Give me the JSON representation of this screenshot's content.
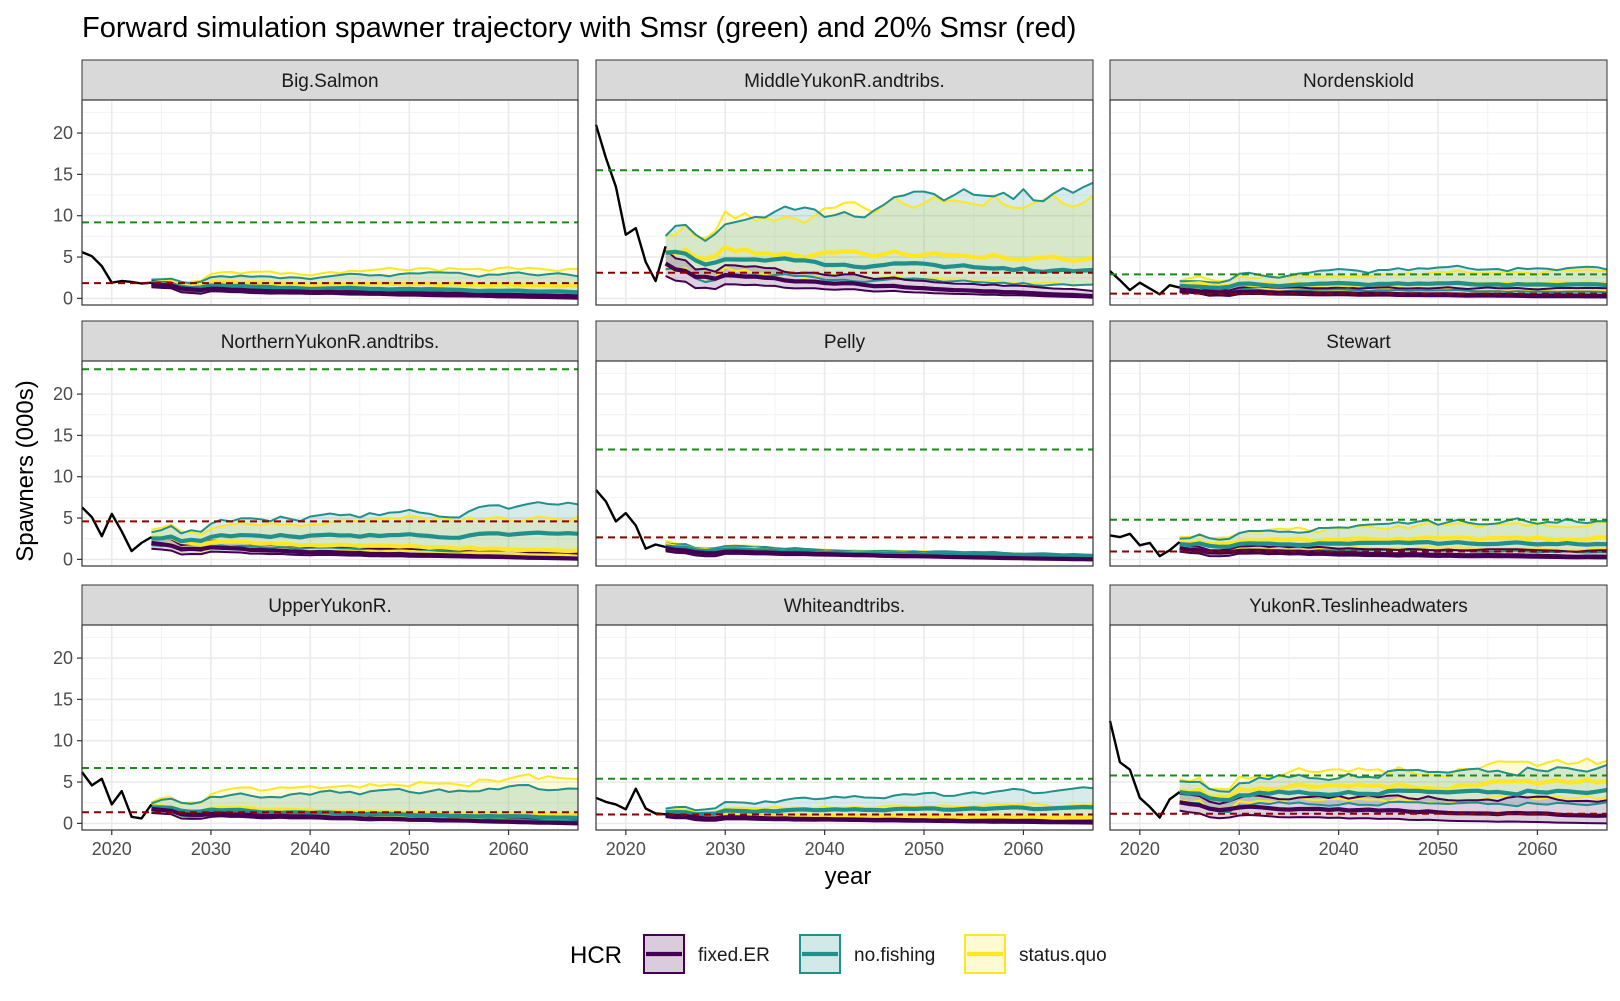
{
  "chart_data": {
    "type": "line",
    "title": "Forward simulation spawner trajectory with Smsr (green) and 20% Smsr (red)",
    "xlabel": "year",
    "ylabel": "Spawners (000s)",
    "xlim": [
      2017,
      2067
    ],
    "ylim": [
      -0.8,
      24
    ],
    "x_ticks": [
      2020,
      2030,
      2040,
      2050,
      2060
    ],
    "y_ticks": [
      0,
      5,
      10,
      15,
      20
    ],
    "grid": true,
    "facet_layout": "3x3",
    "legend": {
      "title": "HCR",
      "position": "bottom",
      "entries": [
        {
          "label": "fixed.ER",
          "color": "#440154"
        },
        {
          "label": "no.fishing",
          "color": "#21908C"
        },
        {
          "label": "status.quo",
          "color": "#FDE725"
        }
      ]
    },
    "reference_lines": {
      "smsr_color": "#1a8a1a",
      "smsr20_color": "#8b0000"
    },
    "facets": [
      {
        "name": "Big.Salmon",
        "smsr": 9.2,
        "smsr20": 1.84,
        "historical": {
          "x": [
            2017,
            2018,
            2019,
            2020,
            2021,
            2022,
            2023,
            2024
          ],
          "y": [
            5.6,
            5.1,
            3.9,
            1.9,
            2.1,
            2.0,
            1.8,
            1.9
          ]
        },
        "hcr": {
          "fixed.ER": {
            "median_start": 1.7,
            "median_end": 0.1,
            "lower_start": 1.3,
            "lower_end": 0.0,
            "upper_start": 2.0,
            "upper_end": 0.4
          },
          "no.fishing": {
            "median_start": 1.8,
            "median_end": 0.8,
            "lower_start": 1.5,
            "lower_end": 0.3,
            "upper_start": 2.2,
            "upper_end": 3.0
          },
          "status.quo": {
            "median_start": 1.9,
            "median_end": 1.6,
            "lower_start": 1.5,
            "lower_end": 0.8,
            "upper_start": 2.3,
            "upper_end": 3.7
          }
        }
      },
      {
        "name": "MiddleYukonR.andtribs.",
        "smsr": 15.5,
        "smsr20": 3.1,
        "historical": {
          "x": [
            2017,
            2018,
            2019,
            2020,
            2021,
            2022,
            2023,
            2024
          ],
          "y": [
            21,
            17,
            13.5,
            7.7,
            8.5,
            4.4,
            2.1,
            6.3
          ]
        },
        "hcr": {
          "fixed.ER": {
            "median_start": 4.0,
            "median_end": 0.3,
            "lower_start": 2.5,
            "lower_end": 0.1,
            "upper_start": 5.5,
            "upper_end": 1.0
          },
          "no.fishing": {
            "median_start": 5.5,
            "median_end": 3.2,
            "lower_start": 3.5,
            "lower_end": 1.5,
            "upper_start": 7.5,
            "upper_end": 12.8
          },
          "status.quo": {
            "median_start": 6.0,
            "median_end": 5.0,
            "lower_start": 4.0,
            "lower_end": 1.8,
            "upper_start": 8.0,
            "upper_end": 12.7
          }
        }
      },
      {
        "name": "Nordenskiold",
        "smsr": 2.9,
        "smsr20": 0.58,
        "historical": {
          "x": [
            2017,
            2018,
            2019,
            2020,
            2021,
            2022,
            2023,
            2024
          ],
          "y": [
            3.3,
            2.2,
            1.0,
            1.9,
            1.2,
            0.5,
            1.6,
            1.3
          ]
        },
        "hcr": {
          "fixed.ER": {
            "median_start": 1.0,
            "median_end": 0.3,
            "lower_start": 0.7,
            "lower_end": 0.1,
            "upper_start": 1.4,
            "upper_end": 1.2
          },
          "no.fishing": {
            "median_start": 1.6,
            "median_end": 1.7,
            "lower_start": 1.1,
            "lower_end": 0.8,
            "upper_start": 2.2,
            "upper_end": 3.8
          },
          "status.quo": {
            "median_start": 1.7,
            "median_end": 1.8,
            "lower_start": 1.2,
            "lower_end": 1.0,
            "upper_start": 2.3,
            "upper_end": 3.3
          }
        }
      },
      {
        "name": "NorthernYukonR.andtribs.",
        "smsr": 23.0,
        "smsr20": 4.6,
        "historical": {
          "x": [
            2017,
            2018,
            2019,
            2020,
            2021,
            2022,
            2023,
            2024
          ],
          "y": [
            6.3,
            5.1,
            2.8,
            5.5,
            3.4,
            1.0,
            2.0,
            2.7
          ]
        },
        "hcr": {
          "fixed.ER": {
            "median_start": 2.0,
            "median_end": 0.1,
            "lower_start": 1.3,
            "lower_end": 0.0,
            "upper_start": 2.8,
            "upper_end": 0.8
          },
          "no.fishing": {
            "median_start": 2.6,
            "median_end": 3.0,
            "lower_start": 1.8,
            "lower_end": 1.0,
            "upper_start": 3.4,
            "upper_end": 6.4
          },
          "status.quo": {
            "median_start": 2.7,
            "median_end": 1.1,
            "lower_start": 1.9,
            "lower_end": 0.6,
            "upper_start": 3.5,
            "upper_end": 5.3
          }
        }
      },
      {
        "name": "Pelly",
        "smsr": 13.3,
        "smsr20": 2.66,
        "historical": {
          "x": [
            2017,
            2018,
            2019,
            2020,
            2021,
            2022,
            2023,
            2024
          ],
          "y": [
            8.4,
            7.0,
            4.6,
            5.6,
            4.1,
            1.3,
            1.8,
            1.5
          ]
        },
        "hcr": {
          "fixed.ER": {
            "median_start": 1.3,
            "median_end": 0.0,
            "lower_start": 0.9,
            "lower_end": 0.0,
            "upper_start": 1.7,
            "upper_end": 0.2
          },
          "no.fishing": {
            "median_start": 1.6,
            "median_end": 0.3,
            "lower_start": 1.2,
            "lower_end": 0.1,
            "upper_start": 2.0,
            "upper_end": 0.6
          },
          "status.quo": {
            "median_start": 1.7,
            "median_end": 0.2,
            "lower_start": 1.3,
            "lower_end": 0.1,
            "upper_start": 2.1,
            "upper_end": 0.5
          }
        }
      },
      {
        "name": "Stewart",
        "smsr": 4.8,
        "smsr20": 0.96,
        "historical": {
          "x": [
            2017,
            2018,
            2019,
            2020,
            2021,
            2022,
            2023,
            2024
          ],
          "y": [
            2.9,
            2.7,
            3.1,
            1.7,
            2.0,
            0.4,
            1.1,
            2.1
          ]
        },
        "hcr": {
          "fixed.ER": {
            "median_start": 1.4,
            "median_end": 0.3,
            "lower_start": 1.0,
            "lower_end": 0.1,
            "upper_start": 1.9,
            "upper_end": 1.0
          },
          "no.fishing": {
            "median_start": 1.9,
            "median_end": 1.9,
            "lower_start": 1.3,
            "lower_end": 0.9,
            "upper_start": 2.6,
            "upper_end": 4.8
          },
          "status.quo": {
            "median_start": 2.1,
            "median_end": 2.6,
            "lower_start": 1.4,
            "lower_end": 1.3,
            "upper_start": 2.8,
            "upper_end": 4.4
          }
        }
      },
      {
        "name": "UpperYukonR.",
        "smsr": 6.7,
        "smsr20": 1.34,
        "historical": {
          "x": [
            2017,
            2018,
            2019,
            2020,
            2021,
            2022,
            2023,
            2024
          ],
          "y": [
            6.2,
            4.6,
            5.4,
            2.3,
            3.9,
            0.8,
            0.6,
            2.3
          ]
        },
        "hcr": {
          "fixed.ER": {
            "median_start": 1.8,
            "median_end": 0.0,
            "lower_start": 1.3,
            "lower_end": 0.0,
            "upper_start": 2.3,
            "upper_end": 0.5
          },
          "no.fishing": {
            "median_start": 2.0,
            "median_end": 0.7,
            "lower_start": 1.5,
            "lower_end": 0.3,
            "upper_start": 2.5,
            "upper_end": 4.4
          },
          "status.quo": {
            "median_start": 2.1,
            "median_end": 1.1,
            "lower_start": 1.6,
            "lower_end": 0.5,
            "upper_start": 2.6,
            "upper_end": 5.8
          }
        }
      },
      {
        "name": "Whiteandtribs.",
        "smsr": 5.4,
        "smsr20": 1.08,
        "historical": {
          "x": [
            2017,
            2018,
            2019,
            2020,
            2021,
            2022,
            2023,
            2024
          ],
          "y": [
            3.1,
            2.6,
            2.3,
            1.7,
            4.2,
            1.8,
            1.2,
            1.1
          ]
        },
        "hcr": {
          "fixed.ER": {
            "median_start": 1.0,
            "median_end": 0.1,
            "lower_start": 0.7,
            "lower_end": 0.0,
            "upper_start": 1.3,
            "upper_end": 0.4
          },
          "no.fishing": {
            "median_start": 1.3,
            "median_end": 1.8,
            "lower_start": 0.9,
            "lower_end": 0.6,
            "upper_start": 1.7,
            "upper_end": 3.9
          },
          "status.quo": {
            "median_start": 1.3,
            "median_end": 0.7,
            "lower_start": 1.0,
            "lower_end": 0.3,
            "upper_start": 1.7,
            "upper_end": 2.2
          }
        }
      },
      {
        "name": "YukonR.Teslinheadwaters",
        "smsr": 5.8,
        "smsr20": 1.16,
        "historical": {
          "x": [
            2017,
            2018,
            2019,
            2020,
            2021,
            2022,
            2023,
            2024
          ],
          "y": [
            12.4,
            7.4,
            6.5,
            3.1,
            2.0,
            0.7,
            2.9,
            3.8
          ]
        },
        "hcr": {
          "fixed.ER": {
            "median_start": 2.5,
            "median_end": 1.0,
            "lower_start": 1.5,
            "lower_end": 0.0,
            "upper_start": 3.5,
            "upper_end": 3.0
          },
          "no.fishing": {
            "median_start": 3.6,
            "median_end": 4.0,
            "lower_start": 2.5,
            "lower_end": 2.5,
            "upper_start": 4.8,
            "upper_end": 7.0
          },
          "status.quo": {
            "median_start": 3.8,
            "median_end": 5.0,
            "lower_start": 2.6,
            "lower_end": 3.0,
            "upper_start": 5.0,
            "upper_end": 7.3
          }
        }
      }
    ]
  }
}
